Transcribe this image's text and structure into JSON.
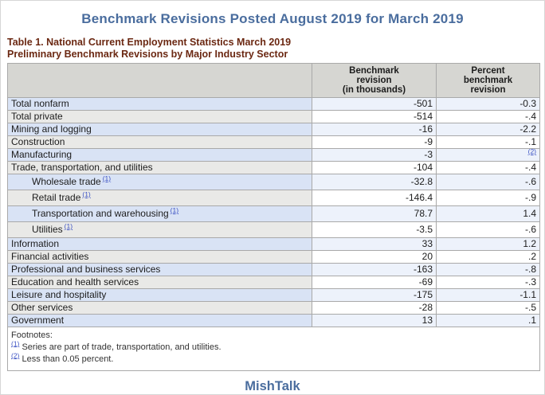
{
  "header": {
    "title": "Benchmark Revisions Posted August 2019 for March 2019"
  },
  "table": {
    "caption_line1": "Table 1. National Current Employment Statistics March 2019",
    "caption_line2": "Preliminary Benchmark Revisions by Major Industry Sector",
    "col_headers": {
      "industry": "",
      "benchmark": "Benchmark\nrevision\n(in thousands)",
      "percent": "Percent\nbenchmark\nrevision"
    },
    "rows": [
      {
        "label": "Total nonfarm",
        "value": "-501",
        "pct": "-0.3"
      },
      {
        "label": "Total private",
        "value": "-514",
        "pct": "-.4"
      },
      {
        "label": "Mining and logging",
        "value": "-16",
        "pct": "-2.2"
      },
      {
        "label": "Construction",
        "value": "-9",
        "pct": "-.1"
      },
      {
        "label": "Manufacturing",
        "value": "-3",
        "pct": "(2)",
        "pct_link": true
      },
      {
        "label": "Trade, transportation, and utilities",
        "value": "-104",
        "pct": "-.4"
      },
      {
        "label": "Wholesale trade",
        "sup": "(1)",
        "indent": true,
        "value": "-32.8",
        "pct": "-.6"
      },
      {
        "label": "Retail trade",
        "sup": "(1)",
        "indent": true,
        "value": "-146.4",
        "pct": "-.9"
      },
      {
        "label": "Transportation and warehousing",
        "sup": "(1)",
        "indent": true,
        "value": "78.7",
        "pct": "1.4"
      },
      {
        "label": "Utilities",
        "sup": "(1)",
        "indent": true,
        "value": "-3.5",
        "pct": "-.6"
      },
      {
        "label": "Information",
        "value": "33",
        "pct": "1.2"
      },
      {
        "label": "Financial activities",
        "value": "20",
        "pct": ".2"
      },
      {
        "label": "Professional and business services",
        "value": "-163",
        "pct": "-.8"
      },
      {
        "label": "Education and health services",
        "value": "-69",
        "pct": "-.3"
      },
      {
        "label": "Leisure and hospitality",
        "value": "-175",
        "pct": "-1.1"
      },
      {
        "label": "Other services",
        "value": "-28",
        "pct": "-.5"
      },
      {
        "label": "Government",
        "value": "13",
        "pct": ".1"
      }
    ],
    "footnotes": {
      "heading": "Footnotes:",
      "items": [
        {
          "marker": "(1)",
          "text": "Series are part of trade, transportation, and utilities."
        },
        {
          "marker": "(2)",
          "text": "Less than 0.05 percent."
        }
      ]
    }
  },
  "footer": {
    "logo_text": "MishTalk"
  },
  "colors": {
    "title_blue": "#4a6d9e",
    "caption_maroon": "#6b2812",
    "link_blue": "#3b51c3",
    "header_gray": "#d6d6d2",
    "row_blue_label": "#d9e3f5",
    "row_gray_label": "#e9e9e7",
    "row_blue_data": "#edf2fb",
    "row_white_data": "#ffffff"
  }
}
